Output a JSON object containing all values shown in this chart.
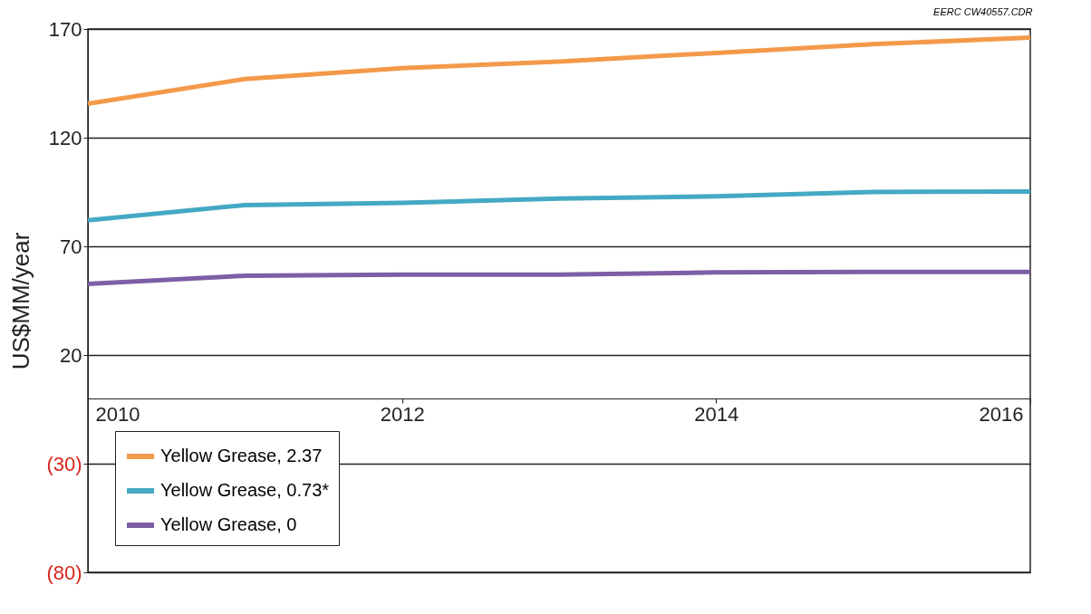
{
  "chart_data": {
    "type": "line",
    "ylabel": "US$MM/year",
    "annotations": [
      "EERC CW40557.CDR"
    ],
    "x": [
      2010,
      2011,
      2012,
      2013,
      2014,
      2015,
      2016
    ],
    "xlim": [
      2010,
      2016
    ],
    "xticks": [
      2010,
      2012,
      2014,
      2016
    ],
    "ylim": [
      -80,
      170
    ],
    "yticks": [
      {
        "value": -80,
        "label": "(80)"
      },
      {
        "value": -30,
        "label": "(30)"
      },
      20,
      70,
      120,
      170
    ],
    "grid": "y",
    "legend": "bottom left",
    "series": [
      {
        "name": "Yellow Grease, 2.37",
        "color": "#f39a4a",
        "values": [
          135.6,
          147,
          152,
          155,
          159,
          163,
          166
        ]
      },
      {
        "name": "Yellow Grease, 0.73*",
        "color": "#45a9c4",
        "values": [
          82,
          89,
          90,
          92,
          93,
          95,
          95.2
        ]
      },
      {
        "name": "Yellow Grease, 0",
        "color": "#7d5fa6",
        "values": [
          52.7,
          56.5,
          57,
          57,
          58,
          58.2,
          58.2
        ]
      }
    ]
  }
}
